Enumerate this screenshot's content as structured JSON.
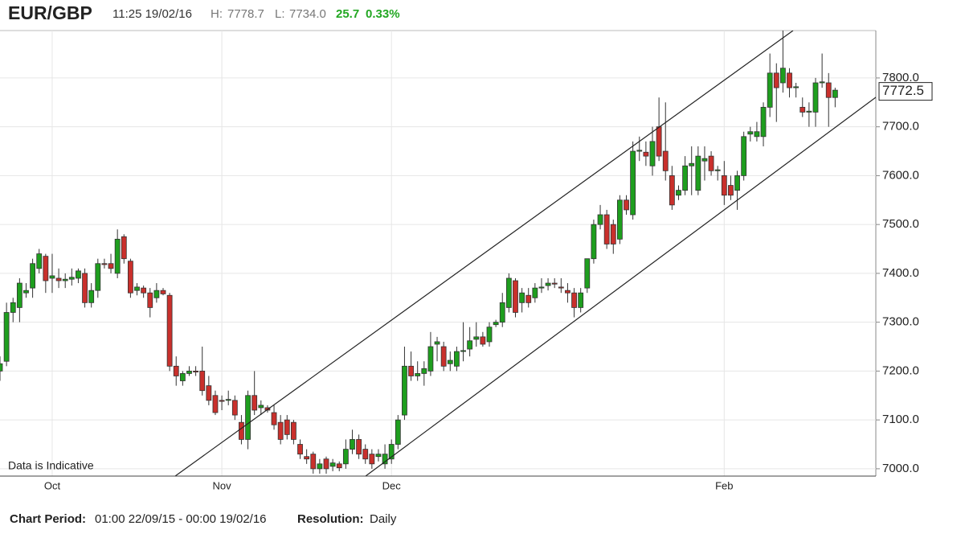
{
  "chart_data": {
    "type": "candlestick",
    "title": "EUR/GBP",
    "timestamp": "11:25 19/02/16",
    "high_label": "H:",
    "high": "7778.7",
    "low_label": "L:",
    "low": "7734.0",
    "change": "25.7",
    "change_pct": "0.33%",
    "note": "Data is Indicative",
    "period_label": "Chart Period:",
    "period": "01:00 22/09/15 - 00:00 19/02/16",
    "resolution_label": "Resolution:",
    "resolution": "Daily",
    "last_price": 7772.5,
    "up_color": "#1e9e1e",
    "down_color": "#c9302c",
    "grid": true,
    "ylim": [
      6985,
      7897
    ],
    "yticks": [
      {
        "value": 7000,
        "label": "7000.0"
      },
      {
        "value": 7100,
        "label": "7100.0"
      },
      {
        "value": 7200,
        "label": "7200.0"
      },
      {
        "value": 7300,
        "label": "7300.0"
      },
      {
        "value": 7400,
        "label": "7400.0"
      },
      {
        "value": 7500,
        "label": "7500.0"
      },
      {
        "value": 7600,
        "label": "7600.0"
      },
      {
        "value": 7700,
        "label": "7700.0"
      },
      {
        "value": 7800,
        "label": "7800.0"
      }
    ],
    "categories": [
      null,
      null,
      null,
      null,
      null,
      null,
      null,
      null,
      "Oct",
      null,
      null,
      null,
      null,
      null,
      null,
      null,
      null,
      null,
      null,
      null,
      null,
      null,
      null,
      null,
      null,
      null,
      null,
      null,
      null,
      null,
      null,
      null,
      null,
      null,
      "Nov",
      null,
      null,
      null,
      null,
      null,
      null,
      null,
      null,
      null,
      null,
      null,
      null,
      null,
      null,
      null,
      null,
      null,
      null,
      null,
      null,
      null,
      null,
      null,
      null,
      null,
      "Dec",
      null,
      null,
      null,
      null,
      null,
      null,
      null,
      null,
      null,
      null,
      null,
      null,
      null,
      null,
      null,
      null,
      null,
      null,
      null,
      null,
      null,
      null,
      null,
      null,
      null,
      null,
      null,
      null,
      null,
      null,
      null,
      null,
      null,
      null,
      null,
      null,
      null,
      null,
      null,
      null,
      null,
      null,
      null,
      null,
      null,
      null,
      null,
      null,
      null,
      null,
      "Feb",
      null,
      null,
      null,
      null,
      null,
      null,
      null,
      null,
      null,
      null,
      null,
      null,
      null,
      null,
      null,
      null,
      null
    ],
    "ohlc": [
      [
        7200,
        7230,
        7180,
        7215
      ],
      [
        7220,
        7340,
        7210,
        7320
      ],
      [
        7320,
        7350,
        7300,
        7340
      ],
      [
        7330,
        7390,
        7300,
        7380
      ],
      [
        7360,
        7380,
        7350,
        7365
      ],
      [
        7370,
        7430,
        7350,
        7420
      ],
      [
        7410,
        7450,
        7400,
        7440
      ],
      [
        7435,
        7440,
        7360,
        7385
      ],
      [
        7390,
        7440,
        7360,
        7395
      ],
      [
        7390,
        7410,
        7370,
        7385
      ],
      [
        7385,
        7400,
        7370,
        7388
      ],
      [
        7388,
        7410,
        7375,
        7392
      ],
      [
        7390,
        7410,
        7380,
        7405
      ],
      [
        7400,
        7410,
        7330,
        7340
      ],
      [
        7340,
        7380,
        7330,
        7365
      ],
      [
        7365,
        7430,
        7350,
        7420
      ],
      [
        7420,
        7430,
        7410,
        7418
      ],
      [
        7420,
        7440,
        7400,
        7410
      ],
      [
        7400,
        7490,
        7390,
        7470
      ],
      [
        7475,
        7480,
        7420,
        7430
      ],
      [
        7425,
        7430,
        7350,
        7360
      ],
      [
        7365,
        7380,
        7355,
        7372
      ],
      [
        7370,
        7375,
        7350,
        7360
      ],
      [
        7360,
        7370,
        7310,
        7330
      ],
      [
        7350,
        7380,
        7340,
        7365
      ],
      [
        7365,
        7370,
        7355,
        7358
      ],
      [
        7355,
        7360,
        7200,
        7210
      ],
      [
        7210,
        7230,
        7170,
        7190
      ],
      [
        7180,
        7200,
        7170,
        7195
      ],
      [
        7195,
        7210,
        7190,
        7200
      ],
      [
        7200,
        7210,
        7190,
        7198
      ],
      [
        7200,
        7250,
        7150,
        7160
      ],
      [
        7170,
        7190,
        7130,
        7140
      ],
      [
        7150,
        7160,
        7110,
        7115
      ],
      [
        7140,
        7150,
        7120,
        7138
      ],
      [
        7140,
        7160,
        7130,
        7142
      ],
      [
        7140,
        7150,
        7100,
        7110
      ],
      [
        7095,
        7110,
        7050,
        7060
      ],
      [
        7060,
        7160,
        7040,
        7150
      ],
      [
        7150,
        7200,
        7110,
        7120
      ],
      [
        7125,
        7140,
        7110,
        7130
      ],
      [
        7125,
        7130,
        7115,
        7120
      ],
      [
        7115,
        7130,
        7080,
        7090
      ],
      [
        7095,
        7110,
        7050,
        7060
      ],
      [
        7100,
        7110,
        7060,
        7070
      ],
      [
        7095,
        7100,
        7050,
        7060
      ],
      [
        7050,
        7060,
        7020,
        7030
      ],
      [
        7025,
        7040,
        7010,
        7020
      ],
      [
        7030,
        7035,
        6990,
        7000
      ],
      [
        7000,
        7020,
        6990,
        7010
      ],
      [
        7020,
        7025,
        6990,
        7000
      ],
      [
        7005,
        7020,
        6995,
        7012
      ],
      [
        7010,
        7015,
        6995,
        7002
      ],
      [
        7010,
        7060,
        7000,
        7040
      ],
      [
        7040,
        7080,
        7030,
        7060
      ],
      [
        7060,
        7070,
        7020,
        7030
      ],
      [
        7040,
        7050,
        7010,
        7020
      ],
      [
        7030,
        7040,
        7000,
        7010
      ],
      [
        7025,
        7040,
        7015,
        7030
      ],
      [
        7010,
        7050,
        7000,
        7030
      ],
      [
        7020,
        7060,
        7010,
        7050
      ],
      [
        7050,
        7110,
        7040,
        7100
      ],
      [
        7110,
        7250,
        7100,
        7210
      ],
      [
        7210,
        7240,
        7180,
        7190
      ],
      [
        7190,
        7220,
        7180,
        7195
      ],
      [
        7195,
        7220,
        7170,
        7205
      ],
      [
        7200,
        7280,
        7190,
        7250
      ],
      [
        7255,
        7270,
        7220,
        7260
      ],
      [
        7250,
        7260,
        7200,
        7210
      ],
      [
        7215,
        7240,
        7200,
        7222
      ],
      [
        7210,
        7250,
        7200,
        7240
      ],
      [
        7240,
        7300,
        7220,
        7242
      ],
      [
        7245,
        7290,
        7230,
        7262
      ],
      [
        7265,
        7300,
        7250,
        7270
      ],
      [
        7270,
        7280,
        7250,
        7255
      ],
      [
        7260,
        7300,
        7250,
        7290
      ],
      [
        7295,
        7305,
        7290,
        7300
      ],
      [
        7300,
        7360,
        7290,
        7340
      ],
      [
        7330,
        7400,
        7320,
        7390
      ],
      [
        7385,
        7390,
        7310,
        7320
      ],
      [
        7340,
        7370,
        7320,
        7360
      ],
      [
        7355,
        7370,
        7330,
        7340
      ],
      [
        7350,
        7380,
        7340,
        7370
      ],
      [
        7370,
        7390,
        7360,
        7372
      ],
      [
        7375,
        7390,
        7365,
        7380
      ],
      [
        7380,
        7390,
        7370,
        7378
      ],
      [
        7372,
        7390,
        7360,
        7370
      ],
      [
        7365,
        7380,
        7340,
        7360
      ],
      [
        7360,
        7370,
        7310,
        7330
      ],
      [
        7330,
        7370,
        7320,
        7360
      ],
      [
        7370,
        7430,
        7360,
        7430
      ],
      [
        7430,
        7510,
        7420,
        7500
      ],
      [
        7500,
        7540,
        7490,
        7520
      ],
      [
        7520,
        7530,
        7450,
        7460
      ],
      [
        7500,
        7510,
        7440,
        7460
      ],
      [
        7470,
        7560,
        7460,
        7550
      ],
      [
        7550,
        7560,
        7520,
        7530
      ],
      [
        7520,
        7670,
        7510,
        7650
      ],
      [
        7650,
        7680,
        7630,
        7652
      ],
      [
        7648,
        7670,
        7620,
        7640
      ],
      [
        7620,
        7700,
        7600,
        7670
      ],
      [
        7700,
        7760,
        7630,
        7640
      ],
      [
        7650,
        7750,
        7590,
        7610
      ],
      [
        7600,
        7620,
        7530,
        7540
      ],
      [
        7560,
        7580,
        7550,
        7570
      ],
      [
        7570,
        7640,
        7560,
        7620
      ],
      [
        7620,
        7660,
        7560,
        7625
      ],
      [
        7570,
        7660,
        7560,
        7640
      ],
      [
        7630,
        7660,
        7590,
        7635
      ],
      [
        7640,
        7650,
        7600,
        7610
      ],
      [
        7610,
        7620,
        7590,
        7612
      ],
      [
        7600,
        7630,
        7540,
        7560
      ],
      [
        7580,
        7600,
        7550,
        7560
      ],
      [
        7570,
        7610,
        7530,
        7600
      ],
      [
        7600,
        7690,
        7590,
        7680
      ],
      [
        7685,
        7700,
        7670,
        7690
      ],
      [
        7680,
        7710,
        7670,
        7690
      ],
      [
        7680,
        7750,
        7660,
        7740
      ],
      [
        7740,
        7850,
        7720,
        7810
      ],
      [
        7810,
        7830,
        7710,
        7780
      ],
      [
        7790,
        7900,
        7770,
        7820
      ],
      [
        7810,
        7820,
        7760,
        7780
      ],
      [
        7780,
        7790,
        7760,
        7782
      ],
      [
        7740,
        7760,
        7720,
        7730
      ],
      [
        7730,
        7750,
        7700,
        7732
      ],
      [
        7730,
        7800,
        7700,
        7790
      ],
      [
        7790,
        7850,
        7780,
        7792
      ],
      [
        7790,
        7810,
        7700,
        7760
      ],
      [
        7760,
        7780,
        7740,
        7775
      ]
    ]
  }
}
